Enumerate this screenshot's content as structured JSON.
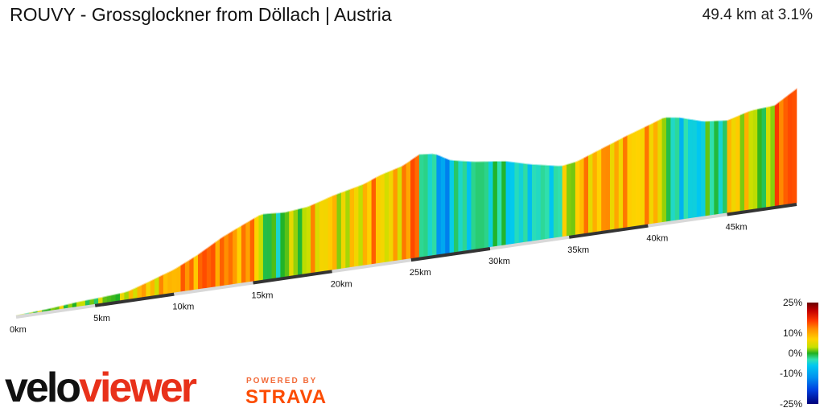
{
  "header": {
    "title": "ROUVY - Grossglockner from Döllach | Austria",
    "summary": "49.4 km at 3.1%"
  },
  "chart_data": {
    "type": "area",
    "total_distance_km": 49.4,
    "x_ticks": [
      "0km",
      "5km",
      "10km",
      "15km",
      "20km",
      "25km",
      "30km",
      "35km",
      "40km",
      "45km"
    ],
    "x_tick_values": [
      0,
      5,
      10,
      15,
      20,
      25,
      30,
      35,
      40,
      45
    ],
    "profile": [
      {
        "km": 0,
        "elev": 0
      },
      {
        "km": 2,
        "elev": 25
      },
      {
        "km": 4,
        "elev": 60
      },
      {
        "km": 5.5,
        "elev": 75
      },
      {
        "km": 7,
        "elev": 95
      },
      {
        "km": 8.5,
        "elev": 190
      },
      {
        "km": 10,
        "elev": 290
      },
      {
        "km": 11.5,
        "elev": 430
      },
      {
        "km": 13,
        "elev": 600
      },
      {
        "km": 14,
        "elev": 690
      },
      {
        "km": 15.5,
        "elev": 820
      },
      {
        "km": 17,
        "elev": 800
      },
      {
        "km": 18.5,
        "elev": 830
      },
      {
        "km": 20,
        "elev": 920
      },
      {
        "km": 22,
        "elev": 1010
      },
      {
        "km": 23,
        "elev": 1090
      },
      {
        "km": 24.5,
        "elev": 1170
      },
      {
        "km": 25.5,
        "elev": 1280
      },
      {
        "km": 26.5,
        "elev": 1260
      },
      {
        "km": 27.5,
        "elev": 1150
      },
      {
        "km": 29,
        "elev": 1090
      },
      {
        "km": 31,
        "elev": 1040
      },
      {
        "km": 32.5,
        "elev": 960
      },
      {
        "km": 34.5,
        "elev": 880
      },
      {
        "km": 35.5,
        "elev": 910
      },
      {
        "km": 37,
        "elev": 1020
      },
      {
        "km": 38.5,
        "elev": 1130
      },
      {
        "km": 40,
        "elev": 1230
      },
      {
        "km": 41,
        "elev": 1300
      },
      {
        "km": 42,
        "elev": 1270
      },
      {
        "km": 43.5,
        "elev": 1180
      },
      {
        "km": 45,
        "elev": 1150
      },
      {
        "km": 46.5,
        "elev": 1230
      },
      {
        "km": 48,
        "elev": 1250
      },
      {
        "km": 49.4,
        "elev": 1420
      }
    ],
    "legend": {
      "labels": [
        "25%",
        "10%",
        "0%",
        "-10%",
        "-25%"
      ],
      "values": [
        25,
        10,
        0,
        -10,
        -25
      ]
    }
  },
  "branding": {
    "logo_part1": "velo",
    "logo_part2": "viewer",
    "powered_by": "POWERED BY",
    "strava": "STRAVA"
  }
}
